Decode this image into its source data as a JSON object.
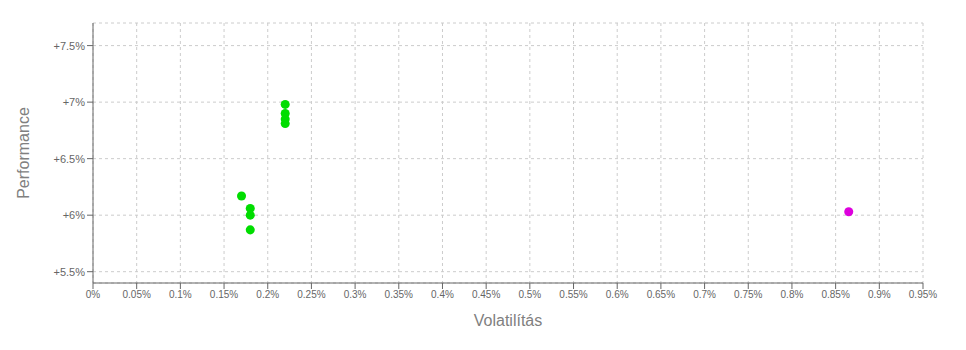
{
  "chart_data": {
    "type": "scatter",
    "x_label": "Volatilítás",
    "y_label": "Performance",
    "xlim": [
      0.0,
      0.95
    ],
    "ylim": [
      5.4,
      7.7
    ],
    "xticks": [
      {
        "value": 0.0,
        "label": "0%"
      },
      {
        "value": 0.05,
        "label": "0.05%"
      },
      {
        "value": 0.1,
        "label": "0.1%"
      },
      {
        "value": 0.15,
        "label": "0.15%"
      },
      {
        "value": 0.2,
        "label": "0.2%"
      },
      {
        "value": 0.25,
        "label": "0.25%"
      },
      {
        "value": 0.3,
        "label": "0.3%"
      },
      {
        "value": 0.35,
        "label": "0.35%"
      },
      {
        "value": 0.4,
        "label": "0.4%"
      },
      {
        "value": 0.45,
        "label": "0.45%"
      },
      {
        "value": 0.5,
        "label": "0.5%"
      },
      {
        "value": 0.55,
        "label": "0.55%"
      },
      {
        "value": 0.6,
        "label": "0.6%"
      },
      {
        "value": 0.65,
        "label": "0.65%"
      },
      {
        "value": 0.7,
        "label": "0.7%"
      },
      {
        "value": 0.75,
        "label": "0.75%"
      },
      {
        "value": 0.8,
        "label": "0.8%"
      },
      {
        "value": 0.85,
        "label": "0.85%"
      },
      {
        "value": 0.9,
        "label": "0.9%"
      },
      {
        "value": 0.95,
        "label": "0.95%"
      }
    ],
    "yticks": [
      {
        "value": 5.5,
        "label": "+5.5%"
      },
      {
        "value": 6.0,
        "label": "+6%"
      },
      {
        "value": 6.5,
        "label": "+6.5%"
      },
      {
        "value": 7.0,
        "label": "+7%"
      },
      {
        "value": 7.5,
        "label": "+7.5%"
      }
    ],
    "grid": true,
    "series": [
      {
        "color": "#00dd00",
        "x": [
          0.22,
          0.22,
          0.22,
          0.22,
          0.17,
          0.18,
          0.18,
          0.18
        ],
        "values": [
          6.98,
          6.9,
          6.85,
          6.81,
          6.17,
          6.06,
          6.0,
          5.87
        ]
      },
      {
        "color": "#dd00dd",
        "x": [
          0.865
        ],
        "values": [
          6.03
        ]
      }
    ]
  }
}
